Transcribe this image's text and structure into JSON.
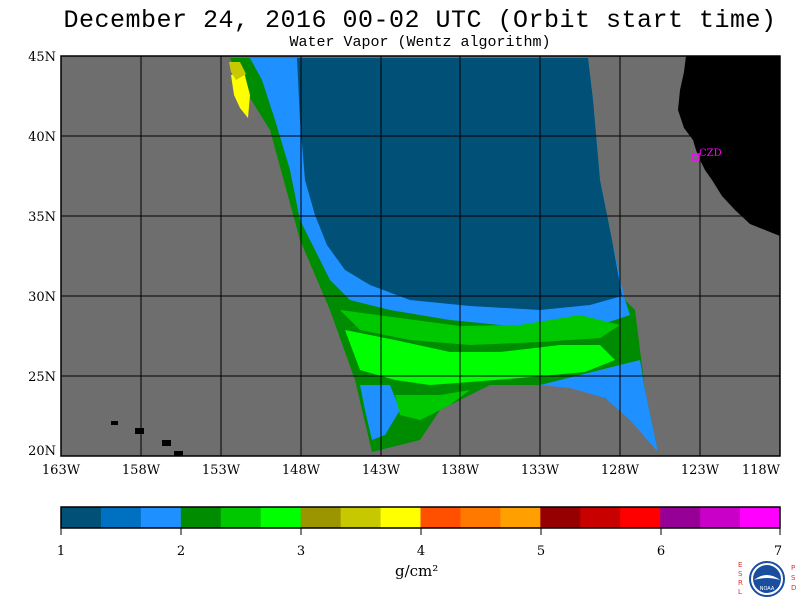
{
  "title": "December 24, 2016  00-02 UTC  (Orbit start time)",
  "subtitle": "Water Vapor (Wentz algorithm)",
  "map": {
    "lon_range": [
      -163,
      -118
    ],
    "lat_range": [
      20,
      45
    ],
    "lat_labels": [
      "45N",
      "40N",
      "35N",
      "30N",
      "25N",
      "20N"
    ],
    "lon_labels": [
      "163W",
      "158W",
      "153W",
      "148W",
      "143W",
      "138W",
      "133W",
      "128W",
      "123W",
      "118W"
    ],
    "station_label": "CZD",
    "colors": {
      "no_data": "#6e6e6e",
      "land": "#000000",
      "station": "#ff00ff",
      "grid": "#000000"
    }
  },
  "colorbar": {
    "ticks": [
      "1",
      "2",
      "3",
      "4",
      "5",
      "6",
      "7"
    ],
    "units": "g/cm²",
    "colors": [
      "#005078",
      "#0070c0",
      "#1e90ff",
      "#008c00",
      "#00c800",
      "#00ff00",
      "#9b9600",
      "#c8c800",
      "#ffff00",
      "#ff5000",
      "#ff7800",
      "#ffa000",
      "#960000",
      "#c80000",
      "#ff0000",
      "#960096",
      "#c800c8",
      "#ff00ff"
    ]
  },
  "logo": {
    "left_letters": [
      "E",
      "S",
      "R",
      "L"
    ],
    "right_letters": [
      "P",
      "S",
      "D"
    ],
    "center_text": "NOAA"
  }
}
